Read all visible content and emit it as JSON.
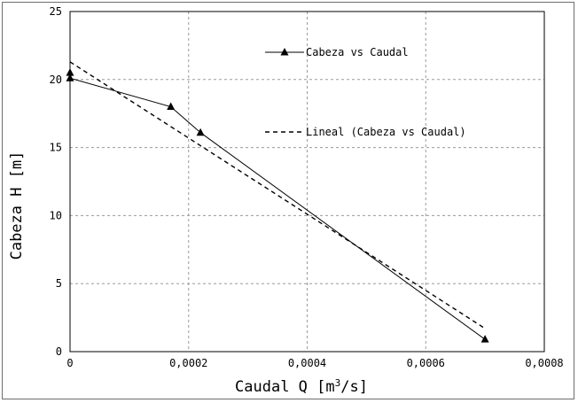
{
  "chart_data": {
    "type": "line",
    "xlabel_main": "Caudal Q [m",
    "xlabel_sup": "3",
    "xlabel_end": "/s]",
    "ylabel": "Cabeza H [m]",
    "xlim": [
      0,
      0.0008
    ],
    "ylim": [
      0,
      25
    ],
    "x_ticks": [
      0,
      0.0002,
      0.0004,
      0.0006,
      0.0008
    ],
    "x_tick_labels": [
      "0",
      "0,0002",
      "0,0004",
      "0,0006",
      "0,0008"
    ],
    "y_ticks": [
      0,
      5,
      10,
      15,
      20,
      25
    ],
    "y_tick_labels": [
      "0",
      "5",
      "10",
      "15",
      "20",
      "25"
    ],
    "grid": true,
    "legend_position": "top-right",
    "series": [
      {
        "name": "Cabeza vs Caudal",
        "style": "solid-triangle",
        "color": "#000000",
        "x": [
          0,
          0,
          0.00017,
          0.00022,
          0.0007
        ],
        "y": [
          20.5,
          20.1,
          18.0,
          16.1,
          0.9
        ]
      },
      {
        "name": "Lineal (Cabeza vs Caudal)",
        "style": "dashed",
        "color": "#000000",
        "x": [
          0,
          0.0007
        ],
        "y": [
          21.3,
          1.7
        ]
      }
    ]
  }
}
